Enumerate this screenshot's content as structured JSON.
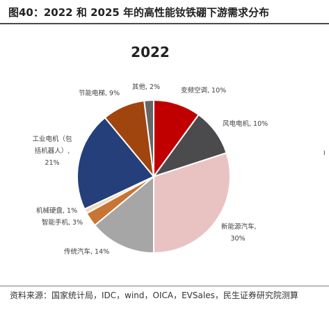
{
  "figure_title": "图40：2022 和 2025 年的高性能钕铁硼下游需求分布",
  "source_note": "资料来源：国家统计局，IDC，wind，OICA，EVSales，民生证券研究院测算",
  "edge_mark": "I",
  "chart_data": {
    "type": "pie",
    "title": "2022",
    "slices": [
      {
        "label": "变频空调",
        "value": 10,
        "display": "变频空调, 10%",
        "color": "#c00000"
      },
      {
        "label": "风电电机",
        "value": 10,
        "display": "风电电机, 10%",
        "color": "#4b4b4d"
      },
      {
        "label": "新能源汽车",
        "value": 30,
        "display_lines": [
          "新能源汽车,",
          "30%"
        ],
        "color": "#e9c3c2"
      },
      {
        "label": "传统汽车",
        "value": 14,
        "display": "传统汽车, 14%",
        "color": "#a6a6a6"
      },
      {
        "label": "智能手机",
        "value": 3,
        "display": "智能手机, 3%",
        "color": "#c87533"
      },
      {
        "label": "机械硬盘",
        "value": 1,
        "display": "机械硬盘, 1%",
        "color": "#f2d9b8"
      },
      {
        "label": "工业电机（包括机器人）",
        "value": 21,
        "display_lines": [
          "工业电机（包",
          "括机器人）,",
          "21%"
        ],
        "color": "#243f7a"
      },
      {
        "label": "节能电梯",
        "value": 9,
        "display": "节能电梯, 9%",
        "color": "#a0450e"
      },
      {
        "label": "其他",
        "value": 2,
        "display": "其他, 2%",
        "color": "#666666"
      }
    ]
  }
}
